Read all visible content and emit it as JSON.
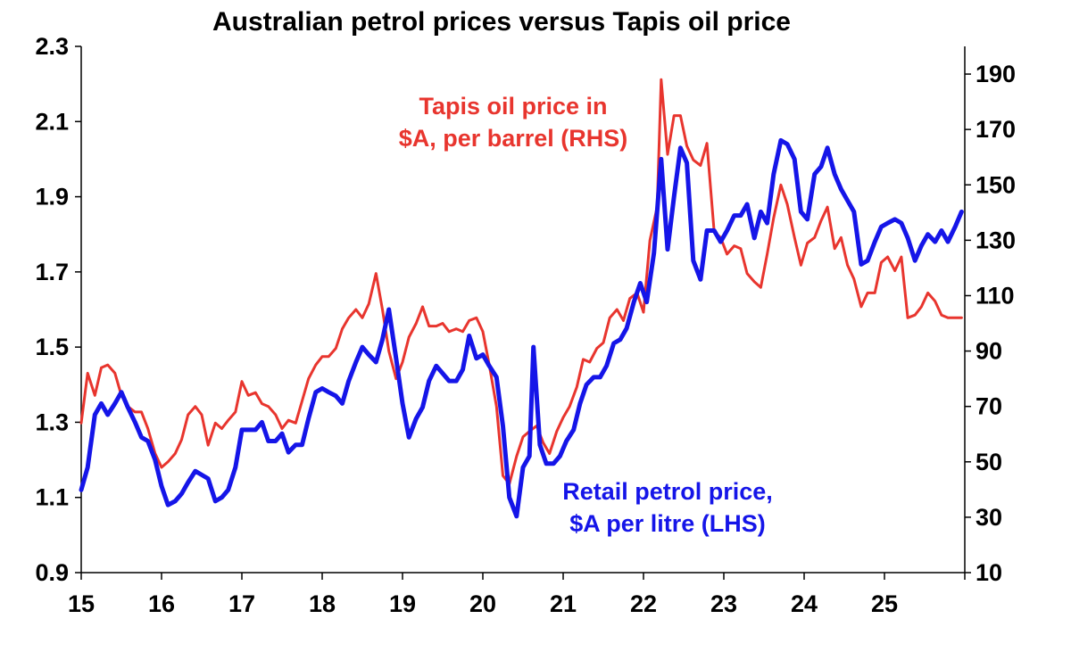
{
  "chart_data": {
    "type": "line",
    "title": "Australian petrol prices versus Tapis oil price",
    "x_tick_labels": [
      "15",
      "16",
      "17",
      "18",
      "19",
      "20",
      "21",
      "22",
      "23",
      "24",
      "25"
    ],
    "x_ticks": [
      2015,
      2016,
      2017,
      2018,
      2019,
      2020,
      2021,
      2022,
      2023,
      2024,
      2025
    ],
    "xlim": [
      2015,
      2026
    ],
    "y_left": {
      "ylim": [
        0.9,
        2.3
      ],
      "ticks": [
        0.9,
        1.1,
        1.3,
        1.5,
        1.7,
        1.9,
        2.1,
        2.3
      ],
      "tick_labels": [
        "0.9",
        "1.1",
        "1.3",
        "1.5",
        "1.7",
        "1.9",
        "2.1",
        "2.3"
      ]
    },
    "y_right": {
      "ylim": [
        10,
        200
      ],
      "ticks": [
        10,
        30,
        50,
        70,
        90,
        110,
        130,
        150,
        170,
        190
      ],
      "tick_labels": [
        "10",
        "30",
        "50",
        "70",
        "90",
        "110",
        "130",
        "150",
        "170",
        "190"
      ]
    },
    "series": [
      {
        "name": "Tapis oil price in $A, per barrel (RHS)",
        "axis": "right",
        "color": "#e8352e",
        "points": [
          [
            2015.0,
            64
          ],
          [
            2015.08,
            82
          ],
          [
            2015.17,
            74
          ],
          [
            2015.25,
            84
          ],
          [
            2015.33,
            85
          ],
          [
            2015.42,
            82
          ],
          [
            2015.5,
            74
          ],
          [
            2015.58,
            70
          ],
          [
            2015.67,
            68
          ],
          [
            2015.75,
            68
          ],
          [
            2015.83,
            62
          ],
          [
            2015.92,
            53
          ],
          [
            2016.0,
            48
          ],
          [
            2016.08,
            50
          ],
          [
            2016.17,
            53
          ],
          [
            2016.25,
            58
          ],
          [
            2016.33,
            67
          ],
          [
            2016.42,
            70
          ],
          [
            2016.5,
            67
          ],
          [
            2016.58,
            56
          ],
          [
            2016.67,
            64
          ],
          [
            2016.75,
            62
          ],
          [
            2016.83,
            65
          ],
          [
            2016.92,
            68
          ],
          [
            2017.0,
            79
          ],
          [
            2017.08,
            74
          ],
          [
            2017.17,
            75
          ],
          [
            2017.25,
            71
          ],
          [
            2017.33,
            70
          ],
          [
            2017.42,
            67
          ],
          [
            2017.5,
            62
          ],
          [
            2017.58,
            65
          ],
          [
            2017.67,
            64
          ],
          [
            2017.75,
            72
          ],
          [
            2017.83,
            80
          ],
          [
            2017.92,
            85
          ],
          [
            2018.0,
            88
          ],
          [
            2018.08,
            88
          ],
          [
            2018.17,
            91
          ],
          [
            2018.25,
            98
          ],
          [
            2018.33,
            102
          ],
          [
            2018.42,
            105
          ],
          [
            2018.5,
            102
          ],
          [
            2018.58,
            107
          ],
          [
            2018.67,
            118
          ],
          [
            2018.75,
            105
          ],
          [
            2018.83,
            90
          ],
          [
            2018.92,
            80
          ],
          [
            2019.0,
            86
          ],
          [
            2019.08,
            95
          ],
          [
            2019.17,
            100
          ],
          [
            2019.25,
            106
          ],
          [
            2019.33,
            99
          ],
          [
            2019.42,
            99
          ],
          [
            2019.5,
            100
          ],
          [
            2019.58,
            97
          ],
          [
            2019.67,
            98
          ],
          [
            2019.75,
            97
          ],
          [
            2019.83,
            101
          ],
          [
            2019.92,
            102
          ],
          [
            2020.0,
            97
          ],
          [
            2020.08,
            85
          ],
          [
            2020.17,
            70
          ],
          [
            2020.25,
            45
          ],
          [
            2020.33,
            42
          ],
          [
            2020.42,
            52
          ],
          [
            2020.5,
            59
          ],
          [
            2020.58,
            61
          ],
          [
            2020.67,
            63
          ],
          [
            2020.75,
            57
          ],
          [
            2020.83,
            53
          ],
          [
            2020.92,
            61
          ],
          [
            2021.0,
            66
          ],
          [
            2021.08,
            70
          ],
          [
            2021.17,
            77
          ],
          [
            2021.25,
            87
          ],
          [
            2021.33,
            86
          ],
          [
            2021.42,
            91
          ],
          [
            2021.5,
            93
          ],
          [
            2021.58,
            102
          ],
          [
            2021.67,
            105
          ],
          [
            2021.75,
            101
          ],
          [
            2021.83,
            109
          ],
          [
            2021.92,
            111
          ],
          [
            2022.0,
            104
          ],
          [
            2022.08,
            130
          ],
          [
            2022.17,
            142
          ],
          [
            2022.22,
            188
          ],
          [
            2022.3,
            161
          ],
          [
            2022.38,
            175
          ],
          [
            2022.46,
            175
          ],
          [
            2022.54,
            164
          ],
          [
            2022.62,
            159
          ],
          [
            2022.71,
            157
          ],
          [
            2022.79,
            165
          ],
          [
            2022.88,
            133
          ],
          [
            2022.96,
            131
          ],
          [
            2023.04,
            125
          ],
          [
            2023.13,
            128
          ],
          [
            2023.21,
            127
          ],
          [
            2023.29,
            118
          ],
          [
            2023.38,
            115
          ],
          [
            2023.46,
            113
          ],
          [
            2023.54,
            125
          ],
          [
            2023.62,
            138
          ],
          [
            2023.71,
            150
          ],
          [
            2023.79,
            143
          ],
          [
            2023.88,
            131
          ],
          [
            2023.96,
            121
          ],
          [
            2024.04,
            129
          ],
          [
            2024.13,
            131
          ],
          [
            2024.21,
            137
          ],
          [
            2024.29,
            142
          ],
          [
            2024.38,
            127
          ],
          [
            2024.46,
            131
          ],
          [
            2024.54,
            121
          ],
          [
            2024.62,
            116
          ],
          [
            2024.71,
            106
          ],
          [
            2024.79,
            111
          ],
          [
            2024.88,
            111
          ],
          [
            2024.96,
            122
          ],
          [
            2025.04,
            124
          ],
          [
            2025.13,
            119
          ],
          [
            2025.21,
            124
          ],
          [
            2025.29,
            102
          ],
          [
            2025.38,
            103
          ],
          [
            2025.46,
            106
          ],
          [
            2025.54,
            111
          ],
          [
            2025.63,
            108
          ],
          [
            2025.71,
            103
          ],
          [
            2025.79,
            102
          ],
          [
            2025.88,
            102
          ],
          [
            2025.96,
            102
          ]
        ]
      },
      {
        "name": "Retail petrol price, $A per litre (LHS)",
        "axis": "left",
        "color": "#1515e8",
        "points": [
          [
            2015.0,
            1.12
          ],
          [
            2015.08,
            1.18
          ],
          [
            2015.17,
            1.32
          ],
          [
            2015.25,
            1.35
          ],
          [
            2015.33,
            1.32
          ],
          [
            2015.42,
            1.35
          ],
          [
            2015.5,
            1.38
          ],
          [
            2015.58,
            1.34
          ],
          [
            2015.67,
            1.3
          ],
          [
            2015.75,
            1.26
          ],
          [
            2015.83,
            1.25
          ],
          [
            2015.92,
            1.2
          ],
          [
            2016.0,
            1.13
          ],
          [
            2016.08,
            1.08
          ],
          [
            2016.17,
            1.09
          ],
          [
            2016.25,
            1.11
          ],
          [
            2016.33,
            1.14
          ],
          [
            2016.42,
            1.17
          ],
          [
            2016.5,
            1.16
          ],
          [
            2016.58,
            1.15
          ],
          [
            2016.67,
            1.09
          ],
          [
            2016.75,
            1.1
          ],
          [
            2016.83,
            1.12
          ],
          [
            2016.92,
            1.18
          ],
          [
            2017.0,
            1.28
          ],
          [
            2017.08,
            1.28
          ],
          [
            2017.17,
            1.28
          ],
          [
            2017.25,
            1.3
          ],
          [
            2017.33,
            1.25
          ],
          [
            2017.42,
            1.25
          ],
          [
            2017.5,
            1.27
          ],
          [
            2017.58,
            1.22
          ],
          [
            2017.67,
            1.24
          ],
          [
            2017.75,
            1.24
          ],
          [
            2017.83,
            1.31
          ],
          [
            2017.92,
            1.38
          ],
          [
            2018.0,
            1.39
          ],
          [
            2018.08,
            1.38
          ],
          [
            2018.17,
            1.37
          ],
          [
            2018.25,
            1.35
          ],
          [
            2018.33,
            1.41
          ],
          [
            2018.42,
            1.46
          ],
          [
            2018.5,
            1.5
          ],
          [
            2018.58,
            1.48
          ],
          [
            2018.67,
            1.46
          ],
          [
            2018.75,
            1.52
          ],
          [
            2018.83,
            1.6
          ],
          [
            2018.92,
            1.47
          ],
          [
            2019.0,
            1.35
          ],
          [
            2019.08,
            1.26
          ],
          [
            2019.17,
            1.31
          ],
          [
            2019.25,
            1.34
          ],
          [
            2019.33,
            1.41
          ],
          [
            2019.42,
            1.45
          ],
          [
            2019.5,
            1.43
          ],
          [
            2019.58,
            1.41
          ],
          [
            2019.67,
            1.41
          ],
          [
            2019.75,
            1.44
          ],
          [
            2019.83,
            1.53
          ],
          [
            2019.92,
            1.47
          ],
          [
            2020.0,
            1.48
          ],
          [
            2020.08,
            1.45
          ],
          [
            2020.17,
            1.42
          ],
          [
            2020.25,
            1.29
          ],
          [
            2020.33,
            1.1
          ],
          [
            2020.42,
            1.05
          ],
          [
            2020.5,
            1.18
          ],
          [
            2020.58,
            1.21
          ],
          [
            2020.63,
            1.5
          ],
          [
            2020.71,
            1.24
          ],
          [
            2020.79,
            1.19
          ],
          [
            2020.88,
            1.19
          ],
          [
            2020.96,
            1.21
          ],
          [
            2021.04,
            1.25
          ],
          [
            2021.13,
            1.28
          ],
          [
            2021.21,
            1.35
          ],
          [
            2021.29,
            1.4
          ],
          [
            2021.38,
            1.42
          ],
          [
            2021.46,
            1.42
          ],
          [
            2021.54,
            1.45
          ],
          [
            2021.63,
            1.51
          ],
          [
            2021.71,
            1.52
          ],
          [
            2021.79,
            1.55
          ],
          [
            2021.88,
            1.62
          ],
          [
            2021.96,
            1.67
          ],
          [
            2022.04,
            1.62
          ],
          [
            2022.13,
            1.75
          ],
          [
            2022.22,
            2.0
          ],
          [
            2022.3,
            1.76
          ],
          [
            2022.38,
            1.9
          ],
          [
            2022.46,
            2.03
          ],
          [
            2022.54,
            1.99
          ],
          [
            2022.62,
            1.73
          ],
          [
            2022.71,
            1.68
          ],
          [
            2022.79,
            1.81
          ],
          [
            2022.88,
            1.81
          ],
          [
            2022.96,
            1.78
          ],
          [
            2023.04,
            1.81
          ],
          [
            2023.13,
            1.85
          ],
          [
            2023.21,
            1.85
          ],
          [
            2023.29,
            1.88
          ],
          [
            2023.38,
            1.79
          ],
          [
            2023.46,
            1.86
          ],
          [
            2023.54,
            1.83
          ],
          [
            2023.62,
            1.96
          ],
          [
            2023.71,
            2.05
          ],
          [
            2023.79,
            2.04
          ],
          [
            2023.88,
            2.0
          ],
          [
            2023.96,
            1.86
          ],
          [
            2024.04,
            1.84
          ],
          [
            2024.13,
            1.96
          ],
          [
            2024.21,
            1.98
          ],
          [
            2024.29,
            2.03
          ],
          [
            2024.38,
            1.96
          ],
          [
            2024.46,
            1.92
          ],
          [
            2024.54,
            1.89
          ],
          [
            2024.62,
            1.86
          ],
          [
            2024.71,
            1.72
          ],
          [
            2024.79,
            1.73
          ],
          [
            2024.88,
            1.78
          ],
          [
            2024.96,
            1.82
          ],
          [
            2025.04,
            1.83
          ],
          [
            2025.13,
            1.84
          ],
          [
            2025.21,
            1.83
          ],
          [
            2025.29,
            1.79
          ],
          [
            2025.38,
            1.73
          ],
          [
            2025.46,
            1.77
          ],
          [
            2025.54,
            1.8
          ],
          [
            2025.63,
            1.78
          ],
          [
            2025.71,
            1.81
          ],
          [
            2025.79,
            1.78
          ],
          [
            2025.88,
            1.82
          ],
          [
            2025.96,
            1.86
          ]
        ]
      }
    ],
    "annotations": [
      {
        "id": "tapis",
        "lines": [
          "Tapis oil price in",
          "$A, per barrel (RHS)"
        ],
        "color": "#e8352e"
      },
      {
        "id": "retail",
        "lines": [
          "Retail petrol price,",
          "$A per litre (LHS)"
        ],
        "color": "#1515e8"
      }
    ]
  }
}
